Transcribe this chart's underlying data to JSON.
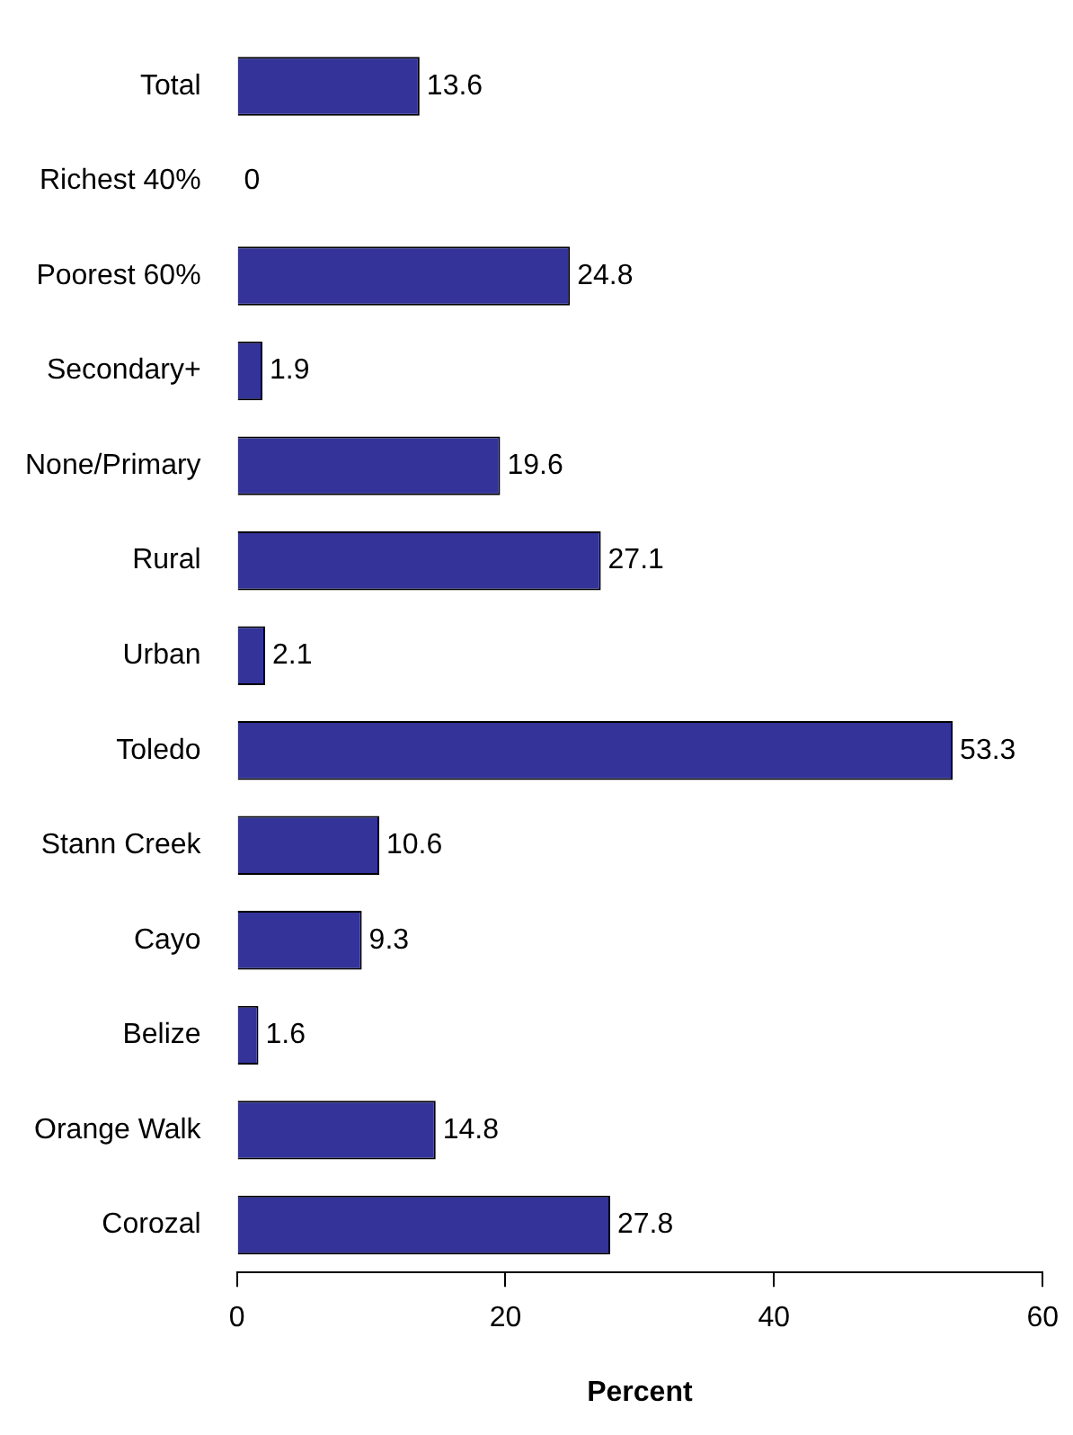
{
  "chart_data": {
    "type": "bar",
    "orientation": "horizontal",
    "xlabel": "Percent",
    "categories": [
      "Total",
      "Richest 40%",
      "Poorest 60%",
      "Secondary+",
      "None/Primary",
      "Rural",
      "Urban",
      "Toledo",
      "Stann Creek",
      "Cayo",
      "Belize",
      "Orange Walk",
      "Corozal"
    ],
    "values": [
      13.6,
      0,
      24.8,
      1.9,
      19.6,
      27.1,
      2.1,
      53.3,
      10.6,
      9.3,
      1.6,
      14.8,
      27.8
    ],
    "color": "#333399",
    "xlim": [
      0,
      60
    ],
    "xticks": [
      0,
      20,
      40,
      60
    ],
    "grid": false,
    "legend": false,
    "data_labels": true
  }
}
